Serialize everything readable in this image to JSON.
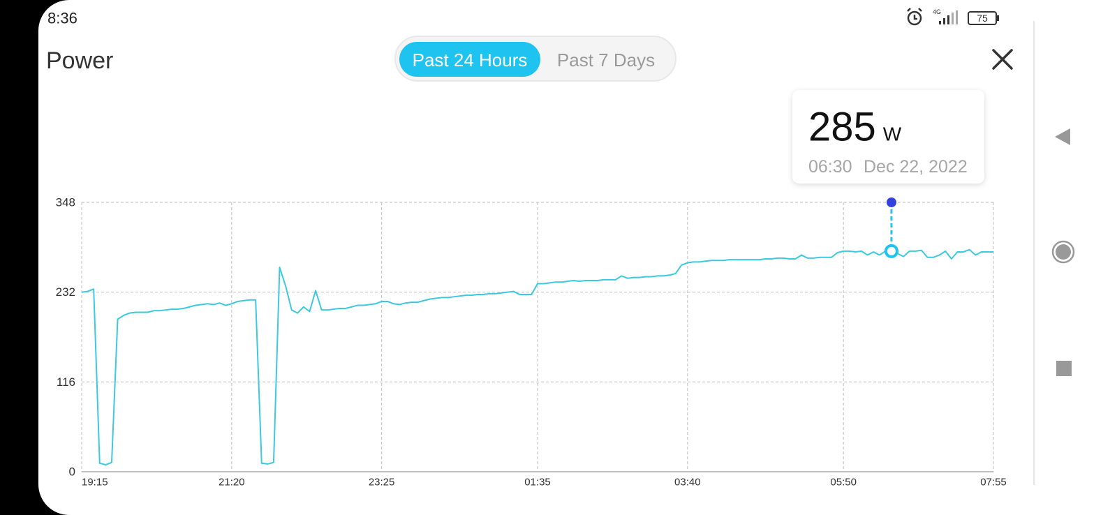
{
  "status_bar": {
    "time": "8:36",
    "network": "4G",
    "battery": "75"
  },
  "header": {
    "title": "Power",
    "tabs": [
      {
        "label": "Past 24 Hours",
        "selected": true
      },
      {
        "label": "Past 7 Days",
        "selected": false
      }
    ]
  },
  "tooltip": {
    "value": 285,
    "unit": "W",
    "time": "06:30",
    "date": "Dec 22, 2022"
  },
  "chart_data": {
    "type": "line",
    "color": "#3cc9df",
    "grid": true,
    "x": [
      "19:15",
      "19:20",
      "19:25",
      "19:30",
      "19:35",
      "19:40",
      "19:45",
      "19:50",
      "19:55",
      "20:00",
      "20:05",
      "20:10",
      "20:15",
      "20:20",
      "20:25",
      "20:30",
      "20:35",
      "20:40",
      "20:45",
      "20:50",
      "20:55",
      "21:00",
      "21:05",
      "21:10",
      "21:15",
      "21:20",
      "21:25",
      "21:30",
      "21:35",
      "21:40",
      "21:45",
      "21:50",
      "21:55",
      "22:00",
      "22:05",
      "22:10",
      "22:15",
      "22:20",
      "22:25",
      "22:30",
      "22:35",
      "22:40",
      "22:45",
      "22:50",
      "22:55",
      "23:00",
      "23:05",
      "23:10",
      "23:15",
      "23:20",
      "23:25",
      "23:30",
      "23:35",
      "23:40",
      "23:45",
      "23:50",
      "23:55",
      "00:00",
      "00:05",
      "00:10",
      "00:15",
      "00:20",
      "00:25",
      "00:30",
      "00:35",
      "00:40",
      "00:45",
      "00:50",
      "00:55",
      "01:00",
      "01:05",
      "01:10",
      "01:15",
      "01:20",
      "01:25",
      "01:30",
      "01:35",
      "01:40",
      "01:45",
      "01:50",
      "01:55",
      "02:00",
      "02:05",
      "02:10",
      "02:15",
      "02:20",
      "02:25",
      "02:30",
      "02:35",
      "02:40",
      "02:45",
      "02:50",
      "02:55",
      "03:00",
      "03:05",
      "03:10",
      "03:15",
      "03:20",
      "03:25",
      "03:30",
      "03:35",
      "03:40",
      "03:45",
      "03:50",
      "03:55",
      "04:00",
      "04:05",
      "04:10",
      "04:15",
      "04:20",
      "04:25",
      "04:30",
      "04:35",
      "04:40",
      "04:45",
      "04:50",
      "04:55",
      "05:00",
      "05:05",
      "05:10",
      "05:15",
      "05:20",
      "05:25",
      "05:30",
      "05:35",
      "05:40",
      "05:45",
      "05:50",
      "05:55",
      "06:00",
      "06:05",
      "06:10",
      "06:15",
      "06:20",
      "06:25",
      "06:30",
      "06:35",
      "06:40",
      "06:45",
      "06:50",
      "06:55",
      "07:00",
      "07:05",
      "07:10",
      "07:15",
      "07:20",
      "07:25",
      "07:30",
      "07:35",
      "07:40",
      "07:45",
      "07:50",
      "07:55"
    ],
    "values": [
      232,
      233,
      236,
      11,
      9,
      12,
      197,
      202,
      205,
      206,
      206,
      206,
      208,
      208,
      209,
      210,
      210,
      211,
      213,
      215,
      216,
      217,
      216,
      218,
      215,
      217,
      220,
      221,
      222,
      222,
      11,
      10,
      12,
      264,
      240,
      209,
      205,
      213,
      207,
      234,
      209,
      209,
      210,
      211,
      211,
      213,
      215,
      215,
      216,
      217,
      220,
      220,
      217,
      216,
      218,
      219,
      219,
      221,
      223,
      224,
      225,
      225,
      226,
      227,
      228,
      228,
      229,
      229,
      230,
      230,
      231,
      232,
      233,
      229,
      229,
      229,
      243,
      243,
      244,
      245,
      245,
      246,
      247,
      246,
      247,
      247,
      247,
      248,
      248,
      248,
      253,
      250,
      251,
      251,
      252,
      252,
      253,
      253,
      254,
      256,
      267,
      270,
      271,
      271,
      272,
      273,
      273,
      273,
      274,
      274,
      274,
      274,
      274,
      274,
      275,
      275,
      276,
      276,
      275,
      275,
      280,
      276,
      276,
      277,
      277,
      277,
      283,
      285,
      285,
      284,
      285,
      280,
      284,
      280,
      285,
      285,
      282,
      278,
      285,
      285,
      286,
      277,
      277,
      280,
      285,
      275,
      284,
      284,
      287,
      280,
      284,
      284,
      284
    ],
    "xticks": [
      "19:15",
      "21:20",
      "23:25",
      "01:35",
      "03:40",
      "05:50",
      "07:55"
    ],
    "ylim": [
      0,
      348
    ],
    "yticks": [
      0,
      116,
      232,
      348
    ]
  }
}
